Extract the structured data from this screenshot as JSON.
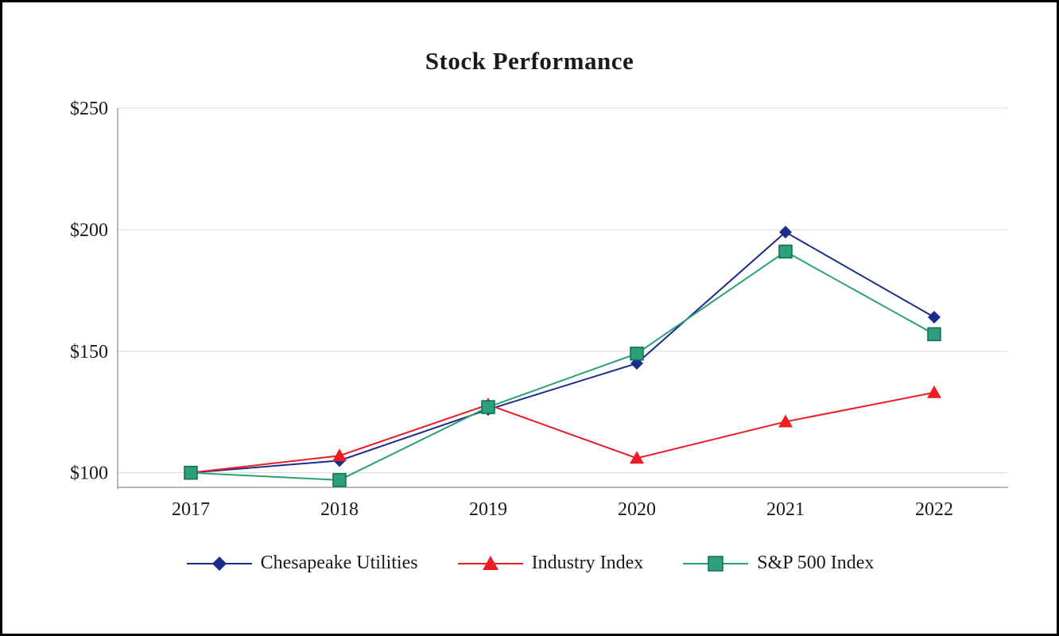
{
  "title": "Stock Performance",
  "chart_data": {
    "type": "line",
    "title": "Stock Performance",
    "x": [
      "2017",
      "2018",
      "2019",
      "2020",
      "2021",
      "2022"
    ],
    "series": [
      {
        "name": "Chesapeake Utilities",
        "color": "#1b2d8a",
        "marker": "diamond",
        "values": [
          100,
          105,
          126,
          145,
          199,
          164
        ]
      },
      {
        "name": "Industry Index",
        "color": "#ec1c24",
        "marker": "triangle",
        "values": [
          100,
          107,
          128,
          106,
          121,
          133
        ]
      },
      {
        "name": "S&P 500 Index",
        "color": "#2aa17c",
        "marker": "square",
        "values": [
          100,
          97,
          127,
          149,
          191,
          157
        ]
      }
    ],
    "ylim": [
      94,
      250
    ],
    "yticks": [
      100,
      150,
      200,
      250
    ],
    "ytick_labels": [
      "$100",
      "$150",
      "$200",
      "$250"
    ],
    "grid": true,
    "legend_position": "bottom",
    "grid_color": "#d9d9d9",
    "axis_color": "#a0a0a0",
    "text_color": "#1a1a1a"
  }
}
